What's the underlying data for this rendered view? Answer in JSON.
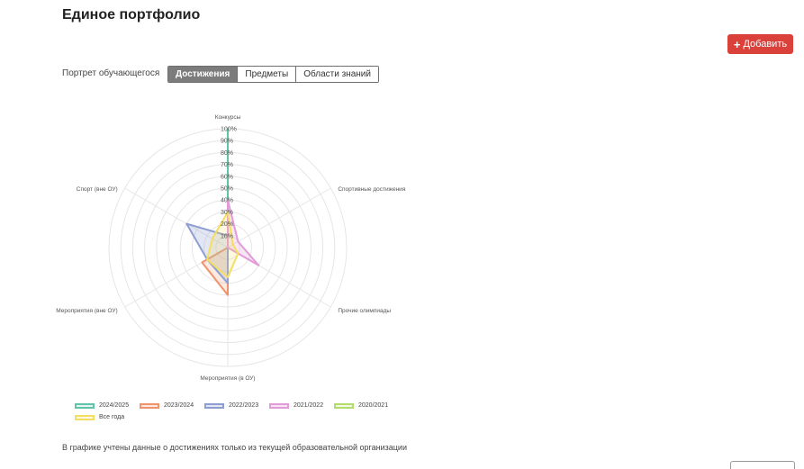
{
  "header": {
    "title": "Единое портфолио",
    "add_label": "Добавить",
    "add_icon": "plus-icon"
  },
  "portrait": {
    "label": "Портрет обучающегося",
    "tabs": [
      {
        "label": "Достижения",
        "active": true
      },
      {
        "label": "Предметы",
        "active": false
      },
      {
        "label": "Области знаний",
        "active": false
      }
    ]
  },
  "chart_data": {
    "type": "radar",
    "axes": [
      "Конкурсы",
      "Спортивные достижения",
      "Прочие олимпиады",
      "Мероприятия (в ОУ)",
      "Мероприятия (вне ОУ)",
      "Спорт (вне ОУ)"
    ],
    "radial_ticks": [
      "10%",
      "20%",
      "30%",
      "40%",
      "50%",
      "60%",
      "70%",
      "80%",
      "90%",
      "100%"
    ],
    "rmax": 100,
    "series": [
      {
        "name": "2024/2025",
        "color": "#5fc4a8",
        "fill": "rgba(95,196,168,0.15)",
        "values": [
          100,
          0,
          0,
          0,
          0,
          0
        ]
      },
      {
        "name": "2023/2024",
        "color": "#f0936c",
        "fill": "rgba(240,147,108,0.20)",
        "values": [
          0,
          0,
          0,
          40,
          25,
          0
        ]
      },
      {
        "name": "2022/2023",
        "color": "#8e9ed0",
        "fill": "rgba(142,158,208,0.25)",
        "values": [
          10,
          0,
          0,
          30,
          20,
          40
        ]
      },
      {
        "name": "2021/2022",
        "color": "#e29ad8",
        "fill": "rgba(226,154,216,0.25)",
        "values": [
          40,
          10,
          30,
          0,
          0,
          0
        ]
      },
      {
        "name": "2020/2021",
        "color": "#b3dd6b",
        "fill": "rgba(179,221,107,0.15)",
        "values": [
          0,
          0,
          0,
          0,
          0,
          0
        ]
      },
      {
        "name": "Все года",
        "color": "#f4de62",
        "fill": "rgba(244,222,98,0.20)",
        "values": [
          30,
          5,
          10,
          25,
          20,
          15
        ]
      }
    ],
    "legend_position": "bottom-left",
    "grid": true
  },
  "footnote": "В графике учтены данные о достижениях только из текущей образовательной организации"
}
